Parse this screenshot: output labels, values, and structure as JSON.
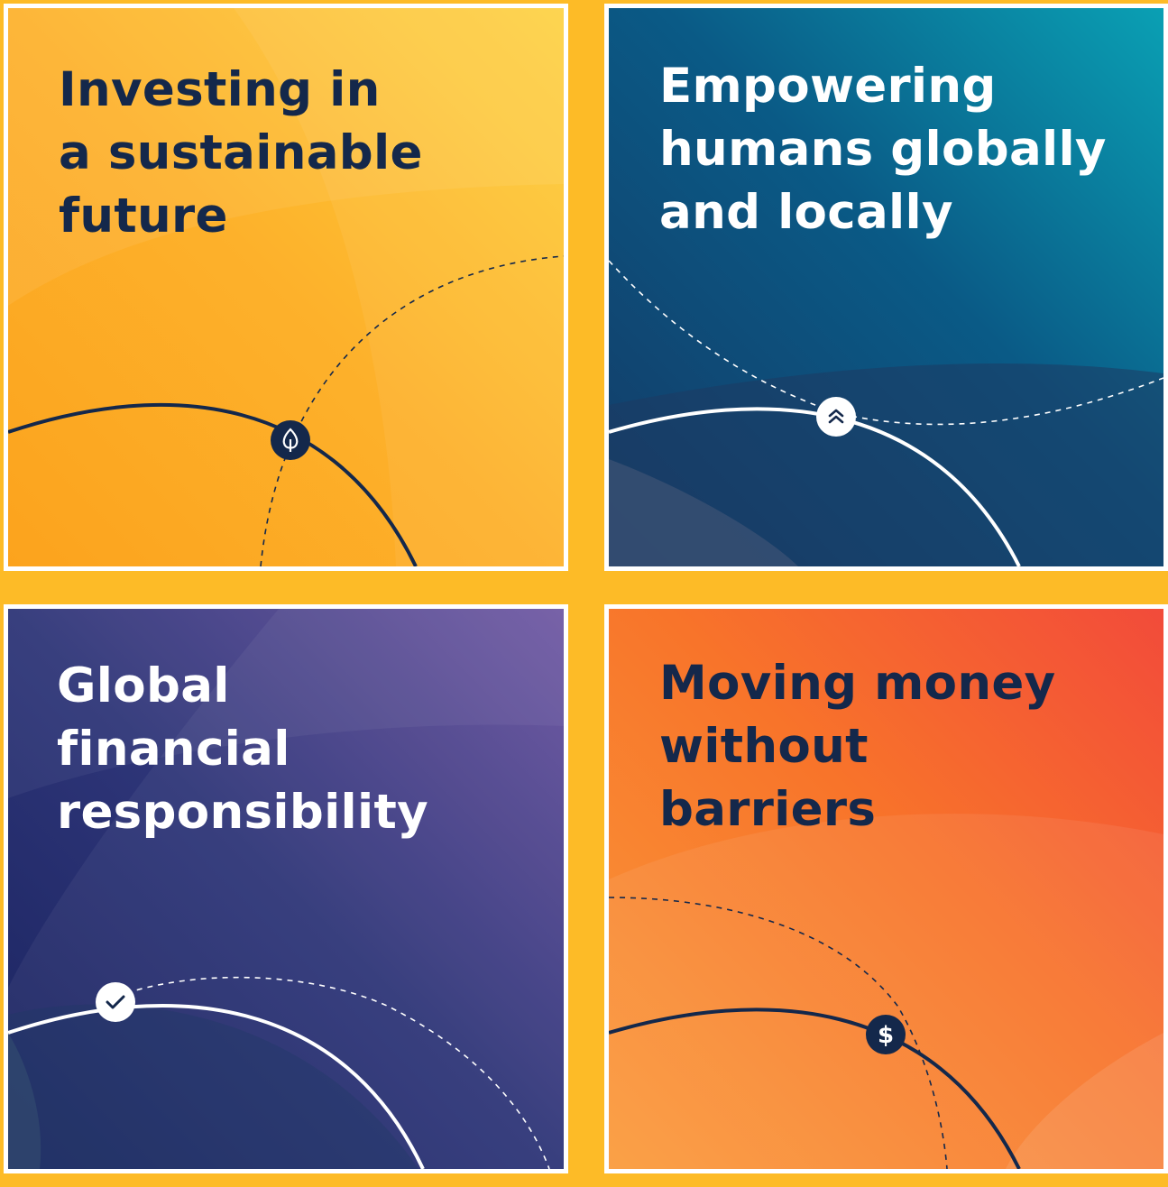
{
  "cards": [
    {
      "id": "sustainable",
      "lines": [
        "Investing in",
        "a sustainable",
        "future"
      ],
      "text_color": "#14284b",
      "gradient": [
        "#fdd03a",
        "#fdb12b",
        "#fca31d"
      ],
      "icon": "leaf-icon"
    },
    {
      "id": "empowering",
      "lines": [
        "Empowering",
        "humans globally",
        "and locally"
      ],
      "text_color": "#ffffff",
      "gradient": [
        "#0aa0b4",
        "#0a5a86",
        "#143a66"
      ],
      "icon": "double-chevron-up-icon"
    },
    {
      "id": "responsibility",
      "lines": [
        "Global",
        "financial",
        "responsibility"
      ],
      "text_color": "#ffffff",
      "gradient": [
        "#6a52a0",
        "#2e3578",
        "#1a2460"
      ],
      "icon": "checkmark-icon"
    },
    {
      "id": "moving-money",
      "lines": [
        "Moving money",
        "without",
        "barriers"
      ],
      "text_color": "#14284b",
      "gradient": [
        "#f24b3a",
        "#f8742a",
        "#fa9a3a"
      ],
      "icon": "dollar-icon"
    }
  ],
  "colors": {
    "background": "#fdbb27",
    "navy": "#14284b",
    "white": "#ffffff"
  }
}
